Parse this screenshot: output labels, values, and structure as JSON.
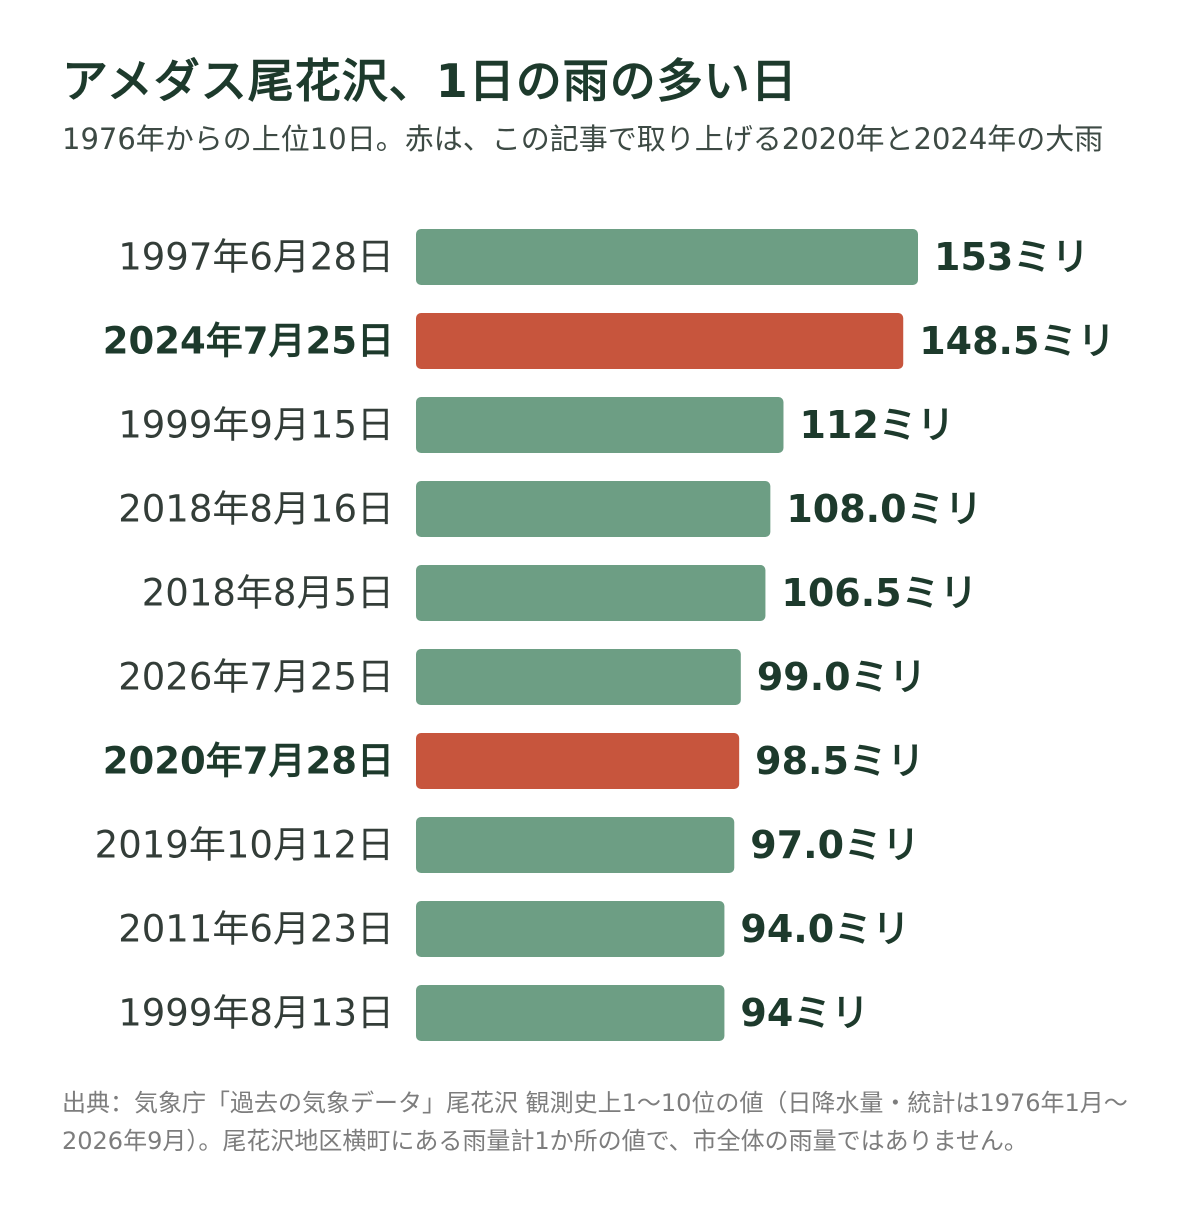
{
  "title": "アメダス尾花沢、1日の雨の多い日",
  "subtitle": "1976年からの上位10日。赤は、この記事で取り上げる2020年と2024年の大雨",
  "footnote": "出典：気象庁「過去の気象データ」尾花沢 観測史上1〜10位の値（日降水量・統計は1976年1月〜2026年9月）。尾花沢地区横町にある雨量計1か所の値で、市全体の雨量ではありません。",
  "colors": {
    "default_bar": "#6d9e84",
    "highlight_bar": "#c7553d",
    "text": "#1d3a2c"
  },
  "chart_data": {
    "type": "bar",
    "orientation": "horizontal",
    "title": "アメダス尾花沢、1日の雨の多い日",
    "subtitle": "1976年からの上位10日。赤は、この記事で取り上げる2020年と2024年の大雨",
    "categories": [
      "1997年6月28日",
      "2024年7月25日",
      "1999年9月15日",
      "2018年8月16日",
      "2018年8月5日",
      "2026年7月25日",
      "2020年7月28日",
      "2019年10月12日",
      "2011年6月23日",
      "1999年8月13日"
    ],
    "values": [
      153,
      148.5,
      112,
      108.0,
      106.5,
      99.0,
      98.5,
      97.0,
      94.0,
      94
    ],
    "value_labels": [
      "153ミリ",
      "148.5ミリ",
      "112ミリ",
      "108.0ミリ",
      "106.5ミリ",
      "99.0ミリ",
      "98.5ミリ",
      "97.0ミリ",
      "94.0ミリ",
      "94ミリ"
    ],
    "highlighted": [
      false,
      true,
      false,
      false,
      false,
      false,
      true,
      false,
      false,
      false
    ],
    "xlim": [
      0,
      153
    ],
    "grid": false,
    "legend": "none"
  }
}
